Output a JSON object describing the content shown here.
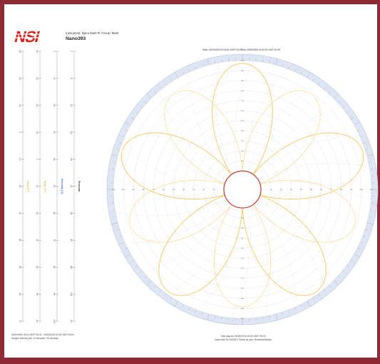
{
  "header": {
    "instrument_line": "Instrument: Nano Mark  R: Group: Mark",
    "title": "Nano393"
  },
  "logo": {
    "text": "NSI",
    "color": "#d9221a"
  },
  "colors": {
    "background_border": "#8e2a35",
    "trace_primary": "#f3c661",
    "trace_secondary": "#f7d98f",
    "center_ring": "#c0392b",
    "outer_band": "#dfe6f3",
    "grid": "#e2e2e2"
  },
  "scales": [
    {
      "ticks": [
        "-30",
        "-20",
        "-10",
        "0",
        "10",
        "20",
        "30",
        "40",
        "50",
        "60",
        "70"
      ],
      "label": "Temp (°F)",
      "label_color": "#e2b44a"
    },
    {
      "ticks": [
        "-40",
        "-30",
        "-20",
        "-10",
        "0",
        "10",
        "20",
        "30",
        "40",
        "50",
        "60"
      ],
      "label": "Temp (°C)",
      "label_color": "#e2b44a"
    },
    {
      "ticks": [
        "0",
        "10",
        "20",
        "30",
        "40",
        "50",
        "60",
        "70",
        "80",
        "90",
        "100"
      ],
      "label": "Humidity (%)",
      "label_color": "#3b7bd1"
    },
    {
      "ticks": [
        "0",
        "6",
        "12",
        "18",
        "24",
        "30",
        "36",
        "42",
        "48",
        "54",
        "60"
      ],
      "label": "Pressure",
      "label_color": "#333333"
    }
  ],
  "chart": {
    "top_label_left": "Start: 00/00/0000 00:00:00 GMT+00:00",
    "top_label_right": "End: 00/00/0000 00:00:00 GMT+00:00",
    "petals": 5
  },
  "footer": {
    "left_line1": "00/00/0000 00:00 GMT+00:00 - 00/00/0000 00:00 GMT+00:00",
    "left_line2": "Sample Interval (All): 10 seconds / 10 seconds",
    "center_line1": "Time aligned: 00/00/00 00:00:00 GMT+00:00",
    "center_line2": "Instrument Id: 000000 | Period by user: Reviewed/Admin"
  }
}
